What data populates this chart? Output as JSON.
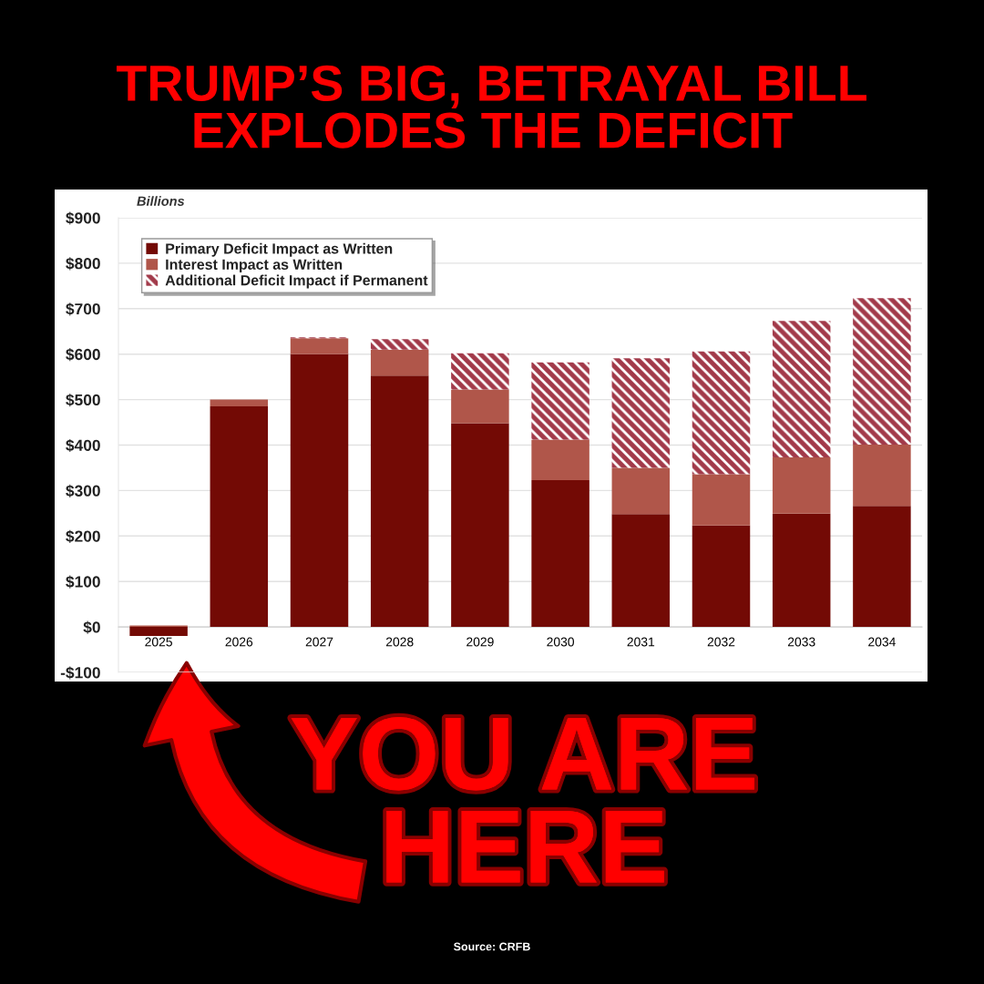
{
  "chart_data": {
    "type": "bar",
    "title": "TRUMP’S BIG, BETRAYAL BILL\nEXPLODES THE DEFICIT",
    "ylabel": "Billions",
    "categories": [
      "2025",
      "2026",
      "2027",
      "2028",
      "2029",
      "2030",
      "2031",
      "2032",
      "2033",
      "2034"
    ],
    "stacked": true,
    "series": [
      {
        "name": "Primary Deficit Impact as Written",
        "color": "#730a05",
        "values": [
          -20,
          485,
          600,
          553,
          448,
          323,
          248,
          223,
          249,
          266
        ]
      },
      {
        "name": "Interest Impact as Written",
        "color": "#b0564a",
        "values": [
          3,
          15,
          35,
          57,
          74,
          89,
          102,
          113,
          124,
          135
        ]
      },
      {
        "name": "Additional Deficit Impact if Permanent",
        "color": "#a23a4a",
        "line_style": "dashed",
        "values": [
          0,
          0,
          2,
          23,
          80,
          170,
          241,
          270,
          300,
          322
        ]
      }
    ],
    "ylim": [
      -100,
      900
    ],
    "yticks": [
      {
        "value": -100,
        "label": "-$100"
      },
      {
        "value": 0,
        "label": "$0"
      },
      {
        "value": 100,
        "label": "$100"
      },
      {
        "value": 200,
        "label": "$200"
      },
      {
        "value": 300,
        "label": "$300"
      },
      {
        "value": 400,
        "label": "$400"
      },
      {
        "value": 500,
        "label": "$500"
      },
      {
        "value": 600,
        "label": "$600"
      },
      {
        "value": 700,
        "label": "$700"
      },
      {
        "value": 800,
        "label": "$800"
      },
      {
        "value": 900,
        "label": "$900"
      }
    ],
    "grid": "y",
    "legend": "top left",
    "annotations": [
      "YOU ARE\nHERE",
      "Source: CRFB"
    ]
  }
}
